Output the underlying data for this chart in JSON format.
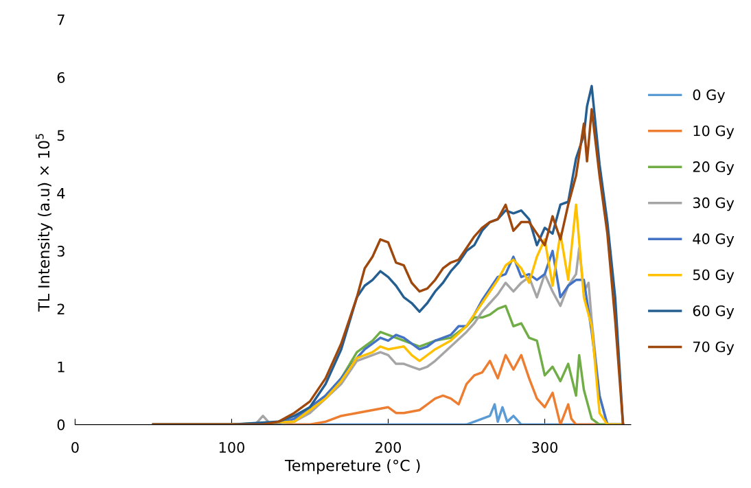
{
  "chart_data": {
    "type": "line",
    "xlabel": "Tempereture (°C )",
    "ylabel": "TL Intensity (a.u) × 10$^{5}$",
    "xlim": [
      0,
      355
    ],
    "xticks": [
      0,
      100,
      200,
      300
    ],
    "ylim": [
      0,
      7
    ],
    "yticks": [
      0,
      1,
      2,
      3,
      4,
      5,
      6,
      7
    ],
    "grid": false,
    "legend": "right",
    "marker": "none",
    "line_style": "solid",
    "series": [
      {
        "name": "0 Gy",
        "color": "#5b9bd5",
        "x": [
          50,
          100,
          150,
          200,
          250,
          255,
          260,
          265,
          268,
          270,
          273,
          276,
          280,
          285,
          300,
          350
        ],
        "values": [
          0,
          0,
          0,
          0,
          0,
          0.05,
          0.1,
          0.15,
          0.35,
          0.05,
          0.3,
          0.05,
          0.15,
          0,
          0,
          0
        ]
      },
      {
        "name": "10 Gy",
        "color": "#ed7d31",
        "x": [
          50,
          100,
          150,
          160,
          170,
          180,
          190,
          200,
          205,
          210,
          220,
          225,
          230,
          235,
          240,
          245,
          250,
          255,
          260,
          265,
          270,
          275,
          280,
          285,
          290,
          295,
          300,
          305,
          310,
          315,
          317,
          320,
          350
        ],
        "values": [
          0,
          0,
          0,
          0.05,
          0.15,
          0.2,
          0.25,
          0.3,
          0.2,
          0.2,
          0.25,
          0.35,
          0.45,
          0.5,
          0.45,
          0.35,
          0.7,
          0.85,
          0.9,
          1.1,
          0.8,
          1.2,
          0.95,
          1.2,
          0.8,
          0.45,
          0.3,
          0.55,
          0,
          0.35,
          0.1,
          0,
          0
        ]
      },
      {
        "name": "20 Gy",
        "color": "#70ad47",
        "x": [
          50,
          100,
          140,
          150,
          160,
          170,
          180,
          185,
          190,
          195,
          200,
          205,
          210,
          215,
          220,
          225,
          230,
          240,
          250,
          255,
          260,
          265,
          270,
          275,
          280,
          285,
          290,
          295,
          300,
          305,
          310,
          315,
          320,
          322,
          325,
          330,
          335,
          350
        ],
        "values": [
          0,
          0,
          0.05,
          0.25,
          0.5,
          0.8,
          1.25,
          1.35,
          1.45,
          1.6,
          1.55,
          1.5,
          1.45,
          1.4,
          1.35,
          1.4,
          1.45,
          1.5,
          1.7,
          1.85,
          1.85,
          1.9,
          2.0,
          2.05,
          1.7,
          1.75,
          1.5,
          1.45,
          0.85,
          1.0,
          0.75,
          1.05,
          0.5,
          1.2,
          0.6,
          0.1,
          0,
          0
        ]
      },
      {
        "name": "30 Gy",
        "color": "#a5a5a5",
        "x": [
          50,
          100,
          115,
          120,
          125,
          140,
          150,
          160,
          170,
          180,
          190,
          195,
          200,
          205,
          210,
          215,
          220,
          225,
          230,
          240,
          250,
          255,
          260,
          265,
          270,
          275,
          280,
          285,
          290,
          295,
          300,
          305,
          310,
          315,
          320,
          322,
          325,
          328,
          330,
          335,
          340,
          350
        ],
        "values": [
          0,
          0,
          0,
          0.15,
          0,
          0.05,
          0.2,
          0.45,
          0.7,
          1.1,
          1.2,
          1.25,
          1.2,
          1.05,
          1.05,
          1.0,
          0.95,
          1.0,
          1.1,
          1.35,
          1.6,
          1.75,
          1.95,
          2.1,
          2.25,
          2.45,
          2.3,
          2.45,
          2.55,
          2.2,
          2.6,
          2.3,
          2.05,
          2.4,
          2.6,
          3.05,
          2.3,
          2.45,
          1.8,
          0.5,
          0,
          0
        ]
      },
      {
        "name": "40 Gy",
        "color": "#4472c4",
        "x": [
          50,
          100,
          130,
          140,
          150,
          160,
          170,
          180,
          185,
          190,
          195,
          200,
          205,
          210,
          215,
          220,
          225,
          230,
          235,
          240,
          245,
          250,
          255,
          260,
          265,
          270,
          275,
          280,
          285,
          290,
          295,
          300,
          305,
          310,
          315,
          320,
          325,
          330,
          335,
          340,
          350
        ],
        "values": [
          0,
          0,
          0.02,
          0.1,
          0.3,
          0.5,
          0.8,
          1.15,
          1.3,
          1.4,
          1.5,
          1.45,
          1.55,
          1.5,
          1.4,
          1.3,
          1.35,
          1.45,
          1.5,
          1.55,
          1.7,
          1.7,
          1.9,
          2.15,
          2.35,
          2.55,
          2.6,
          2.9,
          2.55,
          2.6,
          2.5,
          2.6,
          3.0,
          2.2,
          2.4,
          2.5,
          2.5,
          1.6,
          0.5,
          0,
          0
        ]
      },
      {
        "name": "50 Gy",
        "color": "#ffc000",
        "x": [
          50,
          100,
          140,
          150,
          160,
          170,
          180,
          190,
          195,
          200,
          210,
          215,
          220,
          225,
          230,
          240,
          250,
          255,
          260,
          265,
          270,
          275,
          280,
          285,
          290,
          295,
          300,
          305,
          310,
          315,
          320,
          325,
          330,
          335,
          340,
          350
        ],
        "values": [
          0,
          0,
          0.05,
          0.25,
          0.45,
          0.75,
          1.15,
          1.25,
          1.35,
          1.3,
          1.35,
          1.2,
          1.1,
          1.2,
          1.3,
          1.45,
          1.7,
          1.9,
          2.1,
          2.3,
          2.5,
          2.75,
          2.85,
          2.7,
          2.45,
          2.9,
          3.2,
          2.4,
          3.3,
          2.5,
          3.8,
          2.2,
          1.7,
          0.2,
          0,
          0
        ]
      },
      {
        "name": "60 Gy",
        "color": "#255e91",
        "x": [
          50,
          100,
          130,
          140,
          150,
          160,
          170,
          180,
          185,
          190,
          195,
          200,
          205,
          210,
          215,
          220,
          225,
          230,
          235,
          240,
          245,
          250,
          255,
          260,
          265,
          270,
          275,
          280,
          285,
          290,
          295,
          300,
          305,
          310,
          315,
          320,
          325,
          327,
          330,
          335,
          340,
          345,
          350
        ],
        "values": [
          0,
          0,
          0.05,
          0.15,
          0.3,
          0.7,
          1.3,
          2.2,
          2.4,
          2.5,
          2.65,
          2.55,
          2.4,
          2.2,
          2.1,
          1.95,
          2.1,
          2.3,
          2.45,
          2.65,
          2.8,
          3.0,
          3.1,
          3.35,
          3.5,
          3.55,
          3.7,
          3.65,
          3.7,
          3.55,
          3.1,
          3.4,
          3.3,
          3.8,
          3.85,
          4.6,
          5.0,
          5.5,
          5.85,
          4.5,
          3.5,
          2.2,
          0
        ]
      },
      {
        "name": "70 Gy",
        "color": "#9e480e",
        "x": [
          50,
          100,
          120,
          130,
          140,
          150,
          160,
          170,
          180,
          185,
          190,
          195,
          200,
          205,
          210,
          215,
          220,
          225,
          230,
          235,
          240,
          245,
          250,
          255,
          260,
          265,
          270,
          275,
          280,
          285,
          290,
          295,
          300,
          305,
          310,
          315,
          320,
          325,
          327,
          330,
          335,
          340,
          345,
          350
        ],
        "values": [
          0,
          0,
          0,
          0.05,
          0.2,
          0.4,
          0.8,
          1.4,
          2.2,
          2.7,
          2.9,
          3.2,
          3.15,
          2.8,
          2.75,
          2.45,
          2.3,
          2.35,
          2.5,
          2.7,
          2.8,
          2.85,
          3.05,
          3.25,
          3.4,
          3.5,
          3.55,
          3.8,
          3.35,
          3.5,
          3.5,
          3.3,
          3.1,
          3.6,
          3.2,
          3.8,
          4.3,
          5.2,
          4.55,
          5.45,
          4.3,
          3.3,
          1.8,
          0
        ]
      }
    ]
  }
}
